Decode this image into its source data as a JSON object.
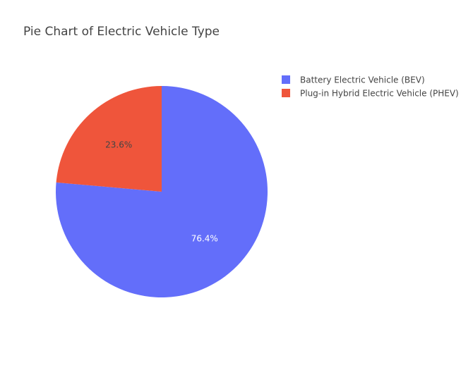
{
  "chart_data": {
    "type": "pie",
    "title": "Pie Chart of Electric Vehicle Type",
    "slices": [
      {
        "label": "Battery Electric Vehicle (BEV)",
        "value": 76.4,
        "display": "76.4%",
        "color": "#636efa",
        "label_color": "#ffffff"
      },
      {
        "label": "Plug-in Hybrid Electric Vehicle (PHEV)",
        "value": 23.6,
        "display": "23.6%",
        "color": "#ef553b",
        "label_color": "#444444"
      }
    ],
    "start_angle_deg": 0,
    "direction": "clockwise",
    "legend_position": "top-right"
  }
}
